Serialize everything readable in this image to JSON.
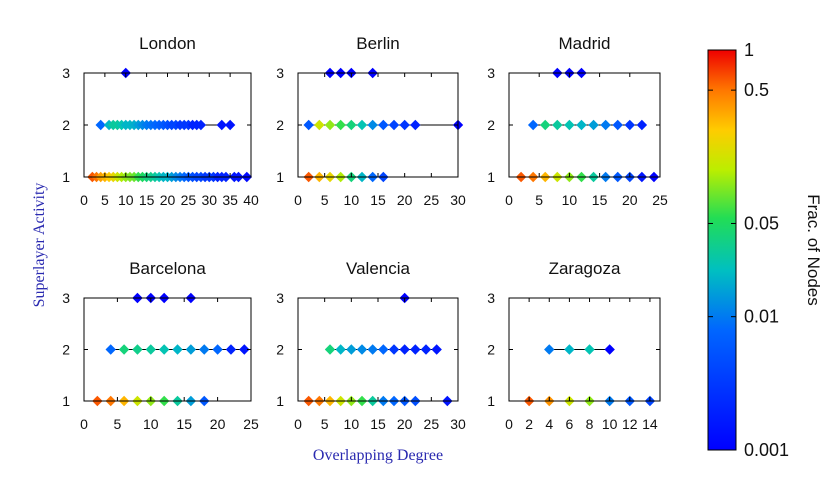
{
  "chart_data": {
    "type": "scatter",
    "xlabel": "Overlapping Degree",
    "ylabel": "Superlayer Activity",
    "colorbar": {
      "label": "Frac. of Nodes",
      "scale": "log",
      "range": [
        0.001,
        1
      ],
      "ticks": [
        {
          "value": 1,
          "label": "1"
        },
        {
          "value": 0.5,
          "label": "0.5"
        },
        {
          "value": 0.05,
          "label": "0.05"
        },
        {
          "value": 0.01,
          "label": "0.01"
        },
        {
          "value": 0.001,
          "label": "0.001"
        }
      ]
    },
    "panels": [
      {
        "title": "London",
        "xlim": [
          0,
          40
        ],
        "xticks": [
          0,
          5,
          10,
          15,
          20,
          25,
          30,
          35,
          40
        ],
        "ylim": [
          1,
          3
        ],
        "yticks": [
          1,
          2,
          3
        ],
        "points": [
          {
            "x": 10,
            "y": 3,
            "c": 0.001
          },
          {
            "x": 4,
            "y": 2,
            "c": 0.008
          },
          {
            "x": 6,
            "y": 2,
            "c": 0.02
          },
          {
            "x": 7,
            "y": 2,
            "c": 0.03
          },
          {
            "x": 8,
            "y": 2,
            "c": 0.03
          },
          {
            "x": 9,
            "y": 2,
            "c": 0.025
          },
          {
            "x": 10,
            "y": 2,
            "c": 0.02
          },
          {
            "x": 11,
            "y": 2,
            "c": 0.02
          },
          {
            "x": 12,
            "y": 2,
            "c": 0.018
          },
          {
            "x": 13,
            "y": 2,
            "c": 0.015
          },
          {
            "x": 14,
            "y": 2,
            "c": 0.012
          },
          {
            "x": 15,
            "y": 2,
            "c": 0.01
          },
          {
            "x": 16,
            "y": 2,
            "c": 0.009
          },
          {
            "x": 17,
            "y": 2,
            "c": 0.008
          },
          {
            "x": 18,
            "y": 2,
            "c": 0.007
          },
          {
            "x": 19,
            "y": 2,
            "c": 0.006
          },
          {
            "x": 20,
            "y": 2,
            "c": 0.005
          },
          {
            "x": 21,
            "y": 2,
            "c": 0.004
          },
          {
            "x": 22,
            "y": 2,
            "c": 0.004
          },
          {
            "x": 23,
            "y": 2,
            "c": 0.003
          },
          {
            "x": 24,
            "y": 2,
            "c": 0.003
          },
          {
            "x": 25,
            "y": 2,
            "c": 0.003
          },
          {
            "x": 26,
            "y": 2,
            "c": 0.002
          },
          {
            "x": 27,
            "y": 2,
            "c": 0.002
          },
          {
            "x": 28,
            "y": 2,
            "c": 0.002
          },
          {
            "x": 33,
            "y": 2,
            "c": 0.0015
          },
          {
            "x": 35,
            "y": 2,
            "c": 0.0015
          },
          {
            "x": 2,
            "y": 1,
            "c": 0.6
          },
          {
            "x": 3,
            "y": 1,
            "c": 0.5
          },
          {
            "x": 4,
            "y": 1,
            "c": 0.35
          },
          {
            "x": 5,
            "y": 1,
            "c": 0.3
          },
          {
            "x": 6,
            "y": 1,
            "c": 0.25
          },
          {
            "x": 7,
            "y": 1,
            "c": 0.2
          },
          {
            "x": 8,
            "y": 1,
            "c": 0.15
          },
          {
            "x": 9,
            "y": 1,
            "c": 0.12
          },
          {
            "x": 10,
            "y": 1,
            "c": 0.1
          },
          {
            "x": 11,
            "y": 1,
            "c": 0.09
          },
          {
            "x": 12,
            "y": 1,
            "c": 0.08
          },
          {
            "x": 13,
            "y": 1,
            "c": 0.06
          },
          {
            "x": 14,
            "y": 1,
            "c": 0.05
          },
          {
            "x": 15,
            "y": 1,
            "c": 0.04
          },
          {
            "x": 16,
            "y": 1,
            "c": 0.035
          },
          {
            "x": 17,
            "y": 1,
            "c": 0.03
          },
          {
            "x": 18,
            "y": 1,
            "c": 0.025
          },
          {
            "x": 19,
            "y": 1,
            "c": 0.02
          },
          {
            "x": 20,
            "y": 1,
            "c": 0.02
          },
          {
            "x": 21,
            "y": 1,
            "c": 0.015
          },
          {
            "x": 22,
            "y": 1,
            "c": 0.012
          },
          {
            "x": 23,
            "y": 1,
            "c": 0.01
          },
          {
            "x": 24,
            "y": 1,
            "c": 0.008
          },
          {
            "x": 25,
            "y": 1,
            "c": 0.006
          },
          {
            "x": 26,
            "y": 1,
            "c": 0.005
          },
          {
            "x": 27,
            "y": 1,
            "c": 0.004
          },
          {
            "x": 28,
            "y": 1,
            "c": 0.004
          },
          {
            "x": 29,
            "y": 1,
            "c": 0.003
          },
          {
            "x": 30,
            "y": 1,
            "c": 0.003
          },
          {
            "x": 31,
            "y": 1,
            "c": 0.003
          },
          {
            "x": 32,
            "y": 1,
            "c": 0.002
          },
          {
            "x": 33,
            "y": 1,
            "c": 0.002
          },
          {
            "x": 34,
            "y": 1,
            "c": 0.002
          },
          {
            "x": 36,
            "y": 1,
            "c": 0.0015
          },
          {
            "x": 37,
            "y": 1,
            "c": 0.0015
          },
          {
            "x": 39,
            "y": 1,
            "c": 0.0012
          }
        ]
      },
      {
        "title": "Berlin",
        "xlim": [
          0,
          30
        ],
        "xticks": [
          0,
          5,
          10,
          15,
          20,
          25,
          30
        ],
        "ylim": [
          1,
          3
        ],
        "yticks": [
          1,
          2,
          3
        ],
        "points": [
          {
            "x": 6,
            "y": 3,
            "c": 0.001
          },
          {
            "x": 8,
            "y": 3,
            "c": 0.001
          },
          {
            "x": 10,
            "y": 3,
            "c": 0.001
          },
          {
            "x": 14,
            "y": 3,
            "c": 0.001
          },
          {
            "x": 2,
            "y": 2,
            "c": 0.006
          },
          {
            "x": 4,
            "y": 2,
            "c": 0.15
          },
          {
            "x": 6,
            "y": 2,
            "c": 0.1
          },
          {
            "x": 8,
            "y": 2,
            "c": 0.06
          },
          {
            "x": 10,
            "y": 2,
            "c": 0.04
          },
          {
            "x": 12,
            "y": 2,
            "c": 0.025
          },
          {
            "x": 14,
            "y": 2,
            "c": 0.012
          },
          {
            "x": 16,
            "y": 2,
            "c": 0.006
          },
          {
            "x": 18,
            "y": 2,
            "c": 0.004
          },
          {
            "x": 20,
            "y": 2,
            "c": 0.003
          },
          {
            "x": 22,
            "y": 2,
            "c": 0.002
          },
          {
            "x": 30,
            "y": 2,
            "c": 0.001
          },
          {
            "x": 2,
            "y": 1,
            "c": 0.6
          },
          {
            "x": 4,
            "y": 1,
            "c": 0.3
          },
          {
            "x": 6,
            "y": 1,
            "c": 0.2
          },
          {
            "x": 8,
            "y": 1,
            "c": 0.12
          },
          {
            "x": 10,
            "y": 1,
            "c": 0.04
          },
          {
            "x": 12,
            "y": 1,
            "c": 0.02
          },
          {
            "x": 14,
            "y": 1,
            "c": 0.008
          },
          {
            "x": 16,
            "y": 1,
            "c": 0.004
          }
        ]
      },
      {
        "title": "Madrid",
        "xlim": [
          0,
          25
        ],
        "xticks": [
          0,
          5,
          10,
          15,
          20,
          25
        ],
        "ylim": [
          1,
          3
        ],
        "yticks": [
          1,
          2,
          3
        ],
        "points": [
          {
            "x": 8,
            "y": 3,
            "c": 0.001
          },
          {
            "x": 10,
            "y": 3,
            "c": 0.001
          },
          {
            "x": 12,
            "y": 3,
            "c": 0.001
          },
          {
            "x": 4,
            "y": 2,
            "c": 0.008
          },
          {
            "x": 6,
            "y": 2,
            "c": 0.04
          },
          {
            "x": 8,
            "y": 2,
            "c": 0.03
          },
          {
            "x": 10,
            "y": 2,
            "c": 0.025
          },
          {
            "x": 12,
            "y": 2,
            "c": 0.02
          },
          {
            "x": 14,
            "y": 2,
            "c": 0.015
          },
          {
            "x": 16,
            "y": 2,
            "c": 0.01
          },
          {
            "x": 18,
            "y": 2,
            "c": 0.006
          },
          {
            "x": 20,
            "y": 2,
            "c": 0.003
          },
          {
            "x": 22,
            "y": 2,
            "c": 0.002
          },
          {
            "x": 2,
            "y": 1,
            "c": 0.6
          },
          {
            "x": 4,
            "y": 1,
            "c": 0.5
          },
          {
            "x": 6,
            "y": 1,
            "c": 0.3
          },
          {
            "x": 8,
            "y": 1,
            "c": 0.15
          },
          {
            "x": 10,
            "y": 1,
            "c": 0.1
          },
          {
            "x": 12,
            "y": 1,
            "c": 0.06
          },
          {
            "x": 14,
            "y": 1,
            "c": 0.03
          },
          {
            "x": 16,
            "y": 1,
            "c": 0.01
          },
          {
            "x": 18,
            "y": 1,
            "c": 0.006
          },
          {
            "x": 20,
            "y": 1,
            "c": 0.004
          },
          {
            "x": 22,
            "y": 1,
            "c": 0.0015
          },
          {
            "x": 24,
            "y": 1,
            "c": 0.001
          }
        ]
      },
      {
        "title": "Barcelona",
        "xlim": [
          0,
          25
        ],
        "xticks": [
          0,
          5,
          10,
          15,
          20,
          25
        ],
        "ylim": [
          1,
          3
        ],
        "yticks": [
          1,
          2,
          3
        ],
        "points": [
          {
            "x": 8,
            "y": 3,
            "c": 0.001
          },
          {
            "x": 10,
            "y": 3,
            "c": 0.001
          },
          {
            "x": 12,
            "y": 3,
            "c": 0.001
          },
          {
            "x": 16,
            "y": 3,
            "c": 0.001
          },
          {
            "x": 4,
            "y": 2,
            "c": 0.008
          },
          {
            "x": 6,
            "y": 2,
            "c": 0.04
          },
          {
            "x": 8,
            "y": 2,
            "c": 0.035
          },
          {
            "x": 10,
            "y": 2,
            "c": 0.03
          },
          {
            "x": 12,
            "y": 2,
            "c": 0.025
          },
          {
            "x": 14,
            "y": 2,
            "c": 0.02
          },
          {
            "x": 16,
            "y": 2,
            "c": 0.015
          },
          {
            "x": 18,
            "y": 2,
            "c": 0.01
          },
          {
            "x": 20,
            "y": 2,
            "c": 0.008
          },
          {
            "x": 22,
            "y": 2,
            "c": 0.002
          },
          {
            "x": 24,
            "y": 2,
            "c": 0.0015
          },
          {
            "x": 2,
            "y": 1,
            "c": 0.6
          },
          {
            "x": 4,
            "y": 1,
            "c": 0.5
          },
          {
            "x": 6,
            "y": 1,
            "c": 0.3
          },
          {
            "x": 8,
            "y": 1,
            "c": 0.15
          },
          {
            "x": 10,
            "y": 1,
            "c": 0.1
          },
          {
            "x": 12,
            "y": 1,
            "c": 0.06
          },
          {
            "x": 14,
            "y": 1,
            "c": 0.03
          },
          {
            "x": 16,
            "y": 1,
            "c": 0.015
          },
          {
            "x": 18,
            "y": 1,
            "c": 0.006
          }
        ]
      },
      {
        "title": "Valencia",
        "xlim": [
          0,
          30
        ],
        "xticks": [
          0,
          5,
          10,
          15,
          20,
          25,
          30
        ],
        "ylim": [
          1,
          3
        ],
        "yticks": [
          1,
          2,
          3
        ],
        "points": [
          {
            "x": 20,
            "y": 3,
            "c": 0.001
          },
          {
            "x": 6,
            "y": 2,
            "c": 0.04
          },
          {
            "x": 8,
            "y": 2,
            "c": 0.02
          },
          {
            "x": 10,
            "y": 2,
            "c": 0.015
          },
          {
            "x": 12,
            "y": 2,
            "c": 0.012
          },
          {
            "x": 14,
            "y": 2,
            "c": 0.01
          },
          {
            "x": 16,
            "y": 2,
            "c": 0.008
          },
          {
            "x": 18,
            "y": 2,
            "c": 0.003
          },
          {
            "x": 20,
            "y": 2,
            "c": 0.002
          },
          {
            "x": 22,
            "y": 2,
            "c": 0.002
          },
          {
            "x": 24,
            "y": 2,
            "c": 0.002
          },
          {
            "x": 26,
            "y": 2,
            "c": 0.0015
          },
          {
            "x": 2,
            "y": 1,
            "c": 0.6
          },
          {
            "x": 4,
            "y": 1,
            "c": 0.5
          },
          {
            "x": 6,
            "y": 1,
            "c": 0.3
          },
          {
            "x": 8,
            "y": 1,
            "c": 0.15
          },
          {
            "x": 10,
            "y": 1,
            "c": 0.1
          },
          {
            "x": 12,
            "y": 1,
            "c": 0.06
          },
          {
            "x": 14,
            "y": 1,
            "c": 0.03
          },
          {
            "x": 16,
            "y": 1,
            "c": 0.01
          },
          {
            "x": 18,
            "y": 1,
            "c": 0.008
          },
          {
            "x": 20,
            "y": 1,
            "c": 0.006
          },
          {
            "x": 22,
            "y": 1,
            "c": 0.005
          },
          {
            "x": 28,
            "y": 1,
            "c": 0.0015
          }
        ]
      },
      {
        "title": "Zaragoza",
        "xlim": [
          0,
          15
        ],
        "xticks": [
          0,
          2,
          4,
          6,
          8,
          10,
          12,
          14
        ],
        "ylim": [
          1,
          3
        ],
        "yticks": [
          1,
          2,
          3
        ],
        "points": [
          {
            "x": 4,
            "y": 2,
            "c": 0.01
          },
          {
            "x": 6,
            "y": 2,
            "c": 0.02
          },
          {
            "x": 8,
            "y": 2,
            "c": 0.025
          },
          {
            "x": 10,
            "y": 2,
            "c": 0.001
          },
          {
            "x": 2,
            "y": 1,
            "c": 0.6
          },
          {
            "x": 4,
            "y": 1,
            "c": 0.4
          },
          {
            "x": 6,
            "y": 1,
            "c": 0.15
          },
          {
            "x": 8,
            "y": 1,
            "c": 0.1
          },
          {
            "x": 10,
            "y": 1,
            "c": 0.01
          },
          {
            "x": 12,
            "y": 1,
            "c": 0.006
          },
          {
            "x": 14,
            "y": 1,
            "c": 0.004
          }
        ]
      }
    ]
  }
}
